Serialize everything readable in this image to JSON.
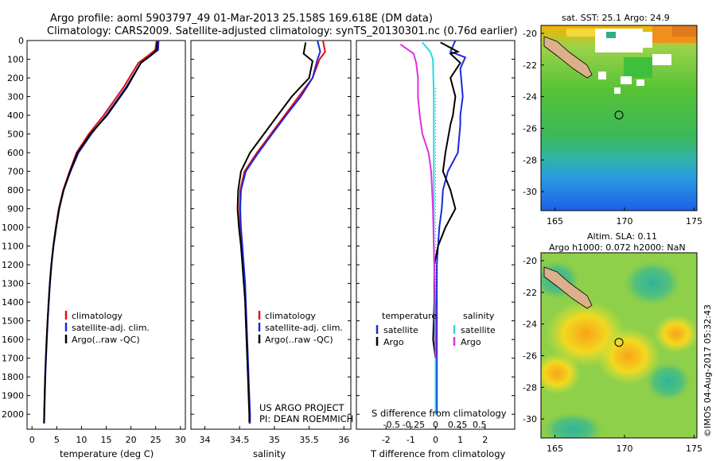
{
  "header": {
    "line1": "Argo profile: aoml 5903797_49 01-Mar-2013 25.158S 169.618E (DM data)",
    "line2": "Climatology: CARS2009. Satellite-adjusted climatology: synTS_20130301.nc (0.76d earlier)"
  },
  "colors": {
    "climatology": "#e01010",
    "satellite": "#1a2ad8",
    "argo": "#000000",
    "sal_satellite": "#28d8e0",
    "sal_argo": "#e030e0"
  },
  "chart_data": [
    {
      "id": "temperature",
      "type": "line",
      "xlabel": "temperature (deg C)",
      "ylabel": "",
      "xlim": [
        -1,
        31
      ],
      "ylim": [
        2080,
        0
      ],
      "xticks": [
        0,
        5,
        10,
        15,
        20,
        25,
        30
      ],
      "xtick_labels": [
        "0",
        "5",
        "10",
        "15",
        "20",
        "25",
        "30"
      ],
      "yticks": [
        0,
        100,
        200,
        300,
        400,
        500,
        600,
        700,
        800,
        900,
        1000,
        1100,
        1200,
        1300,
        1400,
        1500,
        1600,
        1700,
        1800,
        1900,
        2000
      ],
      "ytick_labels": [
        "0",
        "100",
        "200",
        "300",
        "400",
        "500",
        "600",
        "700",
        "800",
        "900",
        "1000",
        "1100",
        "1200",
        "1300",
        "1400",
        "1500",
        "1600",
        "1700",
        "1800",
        "1900",
        "2000"
      ],
      "legend": [
        "climatology",
        "satellite-adj. clim.",
        "Argo(..raw -QC)"
      ],
      "legend_position": "lower-center",
      "series": [
        {
          "name": "climatology",
          "color": "#e01010",
          "points": [
            [
              25.2,
              0
            ],
            [
              24.9,
              50
            ],
            [
              23.5,
              80
            ],
            [
              21.5,
              120
            ],
            [
              18.5,
              250
            ],
            [
              14.5,
              400
            ],
            [
              11.5,
              500
            ],
            [
              9.0,
              600
            ],
            [
              7.6,
              700
            ],
            [
              6.3,
              800
            ],
            [
              5.4,
              900
            ],
            [
              4.8,
              1000
            ],
            [
              4.3,
              1100
            ],
            [
              3.9,
              1200
            ],
            [
              3.6,
              1300
            ],
            [
              3.35,
              1400
            ],
            [
              3.15,
              1500
            ],
            [
              2.95,
              1600
            ],
            [
              2.8,
              1700
            ],
            [
              2.65,
              1800
            ],
            [
              2.55,
              1900
            ],
            [
              2.45,
              2000
            ],
            [
              2.4,
              2050
            ]
          ]
        },
        {
          "name": "satellite-adj. clim.",
          "color": "#1a2ad8",
          "points": [
            [
              25.6,
              0
            ],
            [
              25.5,
              50
            ],
            [
              24.0,
              80
            ],
            [
              22.0,
              120
            ],
            [
              19.0,
              250
            ],
            [
              15.0,
              400
            ],
            [
              12.0,
              500
            ],
            [
              9.4,
              600
            ],
            [
              7.8,
              700
            ],
            [
              6.4,
              800
            ],
            [
              5.5,
              900
            ],
            [
              4.9,
              1000
            ],
            [
              4.35,
              1100
            ],
            [
              3.95,
              1200
            ],
            [
              3.65,
              1300
            ],
            [
              3.4,
              1400
            ],
            [
              3.18,
              1500
            ],
            [
              3.0,
              1600
            ],
            [
              2.85,
              1700
            ],
            [
              2.7,
              1800
            ],
            [
              2.6,
              1900
            ],
            [
              2.5,
              2000
            ],
            [
              2.45,
              2050
            ]
          ]
        },
        {
          "name": "Argo(..raw -QC)",
          "color": "#000000",
          "points": [
            [
              25.3,
              5
            ],
            [
              25.2,
              50
            ],
            [
              24.0,
              80
            ],
            [
              22.0,
              120
            ],
            [
              19.2,
              250
            ],
            [
              15.2,
              400
            ],
            [
              11.8,
              500
            ],
            [
              9.2,
              600
            ],
            [
              7.7,
              700
            ],
            [
              6.4,
              800
            ],
            [
              5.5,
              900
            ],
            [
              4.85,
              1000
            ],
            [
              4.3,
              1100
            ],
            [
              3.9,
              1200
            ],
            [
              3.6,
              1300
            ],
            [
              3.35,
              1400
            ],
            [
              3.15,
              1500
            ],
            [
              2.95,
              1600
            ],
            [
              2.8,
              1700
            ],
            [
              2.65,
              1800
            ],
            [
              2.55,
              1900
            ],
            [
              2.45,
              2000
            ],
            [
              2.45,
              2045
            ]
          ]
        }
      ]
    },
    {
      "id": "salinity",
      "type": "line",
      "xlabel": "salinity",
      "xlim": [
        33.8,
        36.1
      ],
      "ylim": [
        2080,
        0
      ],
      "xticks": [
        34,
        34.5,
        35,
        35.5,
        36
      ],
      "xtick_labels": [
        "34",
        "34.5",
        "35",
        "35.5",
        "36"
      ],
      "legend": [
        "climatology",
        "satellite-adj. clim.",
        "Argo(..raw -QC)"
      ],
      "legend_position": "lower-center",
      "annotation": [
        "US ARGO PROJECT",
        "PI: DEAN ROEMMICH"
      ],
      "series": [
        {
          "name": "climatology",
          "color": "#e01010",
          "points": [
            [
              35.7,
              0
            ],
            [
              35.73,
              60
            ],
            [
              35.65,
              100
            ],
            [
              35.55,
              200
            ],
            [
              35.35,
              300
            ],
            [
              35.15,
              400
            ],
            [
              34.95,
              500
            ],
            [
              34.75,
              600
            ],
            [
              34.57,
              700
            ],
            [
              34.51,
              800
            ],
            [
              34.5,
              900
            ],
            [
              34.51,
              1000
            ],
            [
              34.53,
              1100
            ],
            [
              34.55,
              1200
            ],
            [
              34.57,
              1300
            ],
            [
              34.58,
              1400
            ],
            [
              34.59,
              1500
            ],
            [
              34.6,
              1600
            ],
            [
              34.61,
              1700
            ],
            [
              34.62,
              1800
            ],
            [
              34.63,
              1900
            ],
            [
              34.64,
              2000
            ],
            [
              34.64,
              2050
            ]
          ]
        },
        {
          "name": "satellite-adj. clim.",
          "color": "#1a2ad8",
          "points": [
            [
              35.62,
              0
            ],
            [
              35.66,
              60
            ],
            [
              35.62,
              100
            ],
            [
              35.55,
              200
            ],
            [
              35.38,
              300
            ],
            [
              35.17,
              400
            ],
            [
              34.97,
              500
            ],
            [
              34.77,
              600
            ],
            [
              34.59,
              700
            ],
            [
              34.52,
              800
            ],
            [
              34.51,
              900
            ],
            [
              34.52,
              1000
            ],
            [
              34.54,
              1100
            ],
            [
              34.56,
              1200
            ],
            [
              34.58,
              1300
            ],
            [
              34.59,
              1400
            ],
            [
              34.6,
              1500
            ],
            [
              34.61,
              1600
            ],
            [
              34.62,
              1700
            ],
            [
              34.63,
              1800
            ],
            [
              34.64,
              1900
            ],
            [
              34.65,
              2000
            ],
            [
              34.65,
              2050
            ]
          ]
        },
        {
          "name": "Argo(..raw -QC)",
          "color": "#000000",
          "points": [
            [
              35.45,
              10
            ],
            [
              35.42,
              70
            ],
            [
              35.55,
              110
            ],
            [
              35.5,
              200
            ],
            [
              35.25,
              300
            ],
            [
              35.05,
              400
            ],
            [
              34.85,
              500
            ],
            [
              34.65,
              600
            ],
            [
              34.52,
              700
            ],
            [
              34.48,
              800
            ],
            [
              34.47,
              900
            ],
            [
              34.49,
              1000
            ],
            [
              34.52,
              1100
            ],
            [
              34.54,
              1200
            ],
            [
              34.56,
              1300
            ],
            [
              34.58,
              1400
            ],
            [
              34.59,
              1500
            ],
            [
              34.6,
              1600
            ],
            [
              34.61,
              1700
            ],
            [
              34.62,
              1800
            ],
            [
              34.63,
              1900
            ],
            [
              34.64,
              2000
            ],
            [
              34.64,
              2040
            ]
          ]
        }
      ]
    },
    {
      "id": "difference",
      "type": "line",
      "xlabel": "T difference from climatology",
      "xlabel2": "S difference from climatology",
      "xlim": [
        -3.2,
        3.2
      ],
      "ylim": [
        2080,
        0
      ],
      "xticks": [
        -2,
        -1,
        0,
        1,
        2
      ],
      "xtick_labels": [
        "-2",
        "-1",
        "0",
        "1",
        "2"
      ],
      "xticks_top": [
        -0.5,
        -0.25,
        0,
        0.25,
        0.5
      ],
      "xtick_top_labels": [
        "-0.5",
        "-0.25",
        "0",
        "0.25",
        "0.5"
      ],
      "legend_groups": [
        {
          "title": "temperature",
          "entries": [
            "satellite",
            "Argo"
          ]
        },
        {
          "title": "salinity",
          "entries": [
            "satellite",
            "Argo"
          ]
        }
      ],
      "series": [
        {
          "name": "temperature satellite",
          "color": "#1a2ad8",
          "points": [
            [
              0.8,
              0
            ],
            [
              0.6,
              60
            ],
            [
              1.2,
              90
            ],
            [
              1.0,
              150
            ],
            [
              1.1,
              300
            ],
            [
              1.0,
              400
            ],
            [
              1.0,
              450
            ],
            [
              0.9,
              600
            ],
            [
              0.5,
              700
            ],
            [
              0.3,
              800
            ],
            [
              0.25,
              900
            ],
            [
              0.15,
              1000
            ],
            [
              0.1,
              1100
            ],
            [
              0.05,
              1200
            ],
            [
              0.05,
              1400
            ],
            [
              0.05,
              1600
            ],
            [
              0.05,
              1800
            ],
            [
              0.05,
              2000
            ]
          ]
        },
        {
          "name": "temperature Argo",
          "color": "#000000",
          "points": [
            [
              0.2,
              10
            ],
            [
              0.9,
              60
            ],
            [
              0.6,
              70
            ],
            [
              1.0,
              120
            ],
            [
              0.6,
              200
            ],
            [
              0.8,
              300
            ],
            [
              0.7,
              400
            ],
            [
              0.6,
              450
            ],
            [
              0.4,
              600
            ],
            [
              0.3,
              700
            ],
            [
              0.6,
              800
            ],
            [
              0.8,
              900
            ],
            [
              0.4,
              1000
            ],
            [
              0.1,
              1100
            ],
            [
              -0.05,
              1200
            ],
            [
              -0.05,
              1400
            ],
            [
              -0.1,
              1600
            ],
            [
              0.0,
              1700
            ]
          ]
        },
        {
          "name": "salinity satellite",
          "color": "#28d8e0",
          "points": [
            [
              -0.15,
              10
            ],
            [
              -0.06,
              60
            ],
            [
              -0.03,
              100
            ],
            [
              -0.02,
              300
            ],
            [
              -0.02,
              500
            ],
            [
              -0.02,
              700
            ],
            [
              -0.02,
              900
            ],
            [
              -0.02,
              1100
            ],
            [
              -0.01,
              1300
            ],
            [
              -0.01,
              1500
            ],
            [
              0.0,
              1700
            ],
            [
              0.0,
              1900
            ],
            [
              0.0,
              2000
            ]
          ]
        },
        {
          "name": "salinity Argo",
          "color": "#e030e0",
          "points": [
            [
              -0.4,
              20
            ],
            [
              -0.25,
              70
            ],
            [
              -0.22,
              120
            ],
            [
              -0.2,
              200
            ],
            [
              -0.2,
              300
            ],
            [
              -0.18,
              400
            ],
            [
              -0.15,
              500
            ],
            [
              -0.08,
              600
            ],
            [
              -0.05,
              700
            ],
            [
              -0.03,
              900
            ],
            [
              -0.02,
              1100
            ],
            [
              -0.01,
              1300
            ],
            [
              0.0,
              1500
            ],
            [
              0.0,
              1700
            ]
          ]
        }
      ]
    },
    {
      "id": "sst-map",
      "type": "heatmap",
      "title": "sat. SST: 25.1  Argo: 24.9",
      "xlim": [
        164,
        175.2
      ],
      "ylim": [
        -31.2,
        -19.5
      ],
      "xticks": [
        165,
        170,
        175
      ],
      "xtick_labels": [
        "165",
        "170",
        "175"
      ],
      "yticks": [
        -20,
        -22,
        -24,
        -26,
        -28,
        -30
      ],
      "ytick_labels": [
        "-20",
        "-22",
        "-24",
        "-26",
        "-28",
        "-30"
      ],
      "marker": [
        169.6,
        -25.16
      ]
    },
    {
      "id": "sla-map",
      "type": "heatmap",
      "title": "Altim. SLA: 0.11",
      "subtitle": "Argo h1000: 0.072 h2000: NaN",
      "xlim": [
        164,
        175.2
      ],
      "ylim": [
        -31.2,
        -19.5
      ],
      "xticks": [
        165,
        170,
        175
      ],
      "xtick_labels": [
        "165",
        "170",
        "175"
      ],
      "yticks": [
        -20,
        -22,
        -24,
        -26,
        -28,
        -30
      ],
      "ytick_labels": [
        "-20",
        "-22",
        "-24",
        "-26",
        "-28",
        "-30"
      ],
      "marker": [
        169.6,
        -25.16
      ]
    }
  ],
  "stamp": "©IMOS 04-Aug-2017 05:32:43"
}
